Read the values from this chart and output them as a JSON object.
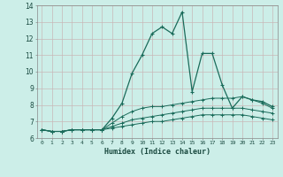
{
  "xlabel": "Humidex (Indice chaleur)",
  "bg_color": "#cceee8",
  "grid_color": "#c8b8b8",
  "line_color": "#1a6b5a",
  "xlim": [
    -0.5,
    23.5
  ],
  "ylim": [
    6,
    14
  ],
  "xticks": [
    0,
    1,
    2,
    3,
    4,
    5,
    6,
    7,
    8,
    9,
    10,
    11,
    12,
    13,
    14,
    15,
    16,
    17,
    18,
    19,
    20,
    21,
    22,
    23
  ],
  "yticks": [
    6,
    7,
    8,
    9,
    10,
    11,
    12,
    13,
    14
  ],
  "series": [
    [
      6.5,
      6.4,
      6.4,
      6.5,
      6.5,
      6.5,
      6.5,
      7.2,
      8.1,
      9.9,
      11.0,
      12.3,
      12.7,
      12.3,
      13.6,
      8.8,
      11.1,
      11.1,
      9.2,
      7.8,
      8.5,
      8.3,
      8.2,
      7.9
    ],
    [
      6.5,
      6.4,
      6.4,
      6.5,
      6.5,
      6.5,
      6.5,
      6.9,
      7.3,
      7.6,
      7.8,
      7.9,
      7.9,
      8.0,
      8.1,
      8.2,
      8.3,
      8.4,
      8.4,
      8.4,
      8.5,
      8.3,
      8.1,
      7.8
    ],
    [
      6.5,
      6.4,
      6.4,
      6.5,
      6.5,
      6.5,
      6.5,
      6.7,
      6.9,
      7.1,
      7.2,
      7.3,
      7.4,
      7.5,
      7.6,
      7.7,
      7.8,
      7.8,
      7.8,
      7.8,
      7.8,
      7.7,
      7.6,
      7.5
    ],
    [
      6.5,
      6.4,
      6.4,
      6.5,
      6.5,
      6.5,
      6.5,
      6.6,
      6.7,
      6.8,
      6.9,
      7.0,
      7.0,
      7.1,
      7.2,
      7.3,
      7.4,
      7.4,
      7.4,
      7.4,
      7.4,
      7.3,
      7.2,
      7.1
    ]
  ]
}
